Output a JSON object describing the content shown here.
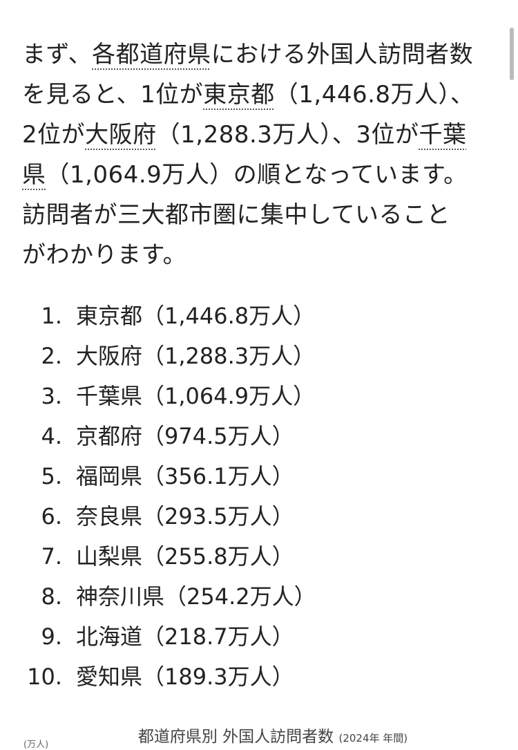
{
  "paragraph": {
    "lines": [
      [
        {
          "t": "まず、"
        },
        {
          "t": "各都道府県",
          "link": true
        },
        {
          "t": "における外国人訪問者数"
        }
      ],
      [
        {
          "t": "を見ると、1位が"
        },
        {
          "t": "東京都",
          "link": true
        },
        {
          "t": "（1,446.8万人）、"
        }
      ],
      [
        {
          "t": "2位が"
        },
        {
          "t": "大阪府",
          "link": true
        },
        {
          "t": "（1,288.3万人）、3位が"
        },
        {
          "t": "千葉",
          "link": true
        }
      ],
      [
        {
          "t": "県",
          "link": true
        },
        {
          "t": "（1,064.9万人）の順となっています。"
        }
      ],
      [
        {
          "t": "訪問者が三大都市圏に集中していること"
        }
      ],
      [
        {
          "t": "がわかります。"
        }
      ]
    ]
  },
  "ranking": [
    {
      "num": "1.",
      "text": "東京都（1,446.8万人）"
    },
    {
      "num": "2.",
      "text": "大阪府（1,288.3万人）"
    },
    {
      "num": "3.",
      "text": "千葉県（1,064.9万人）"
    },
    {
      "num": "4.",
      "text": "京都府（974.5万人）"
    },
    {
      "num": "5.",
      "text": "福岡県（356.1万人）"
    },
    {
      "num": "6.",
      "text": "奈良県（293.5万人）"
    },
    {
      "num": "7.",
      "text": "山梨県（255.8万人）"
    },
    {
      "num": "8.",
      "text": "神奈川県（254.2万人）"
    },
    {
      "num": "9.",
      "text": "北海道（218.7万人）"
    },
    {
      "num": "10.",
      "text": "愛知県（189.3万人）"
    }
  ],
  "figure": {
    "title": "都道府県別 外国人訪問者数",
    "subtitle": "(2024年 年間)",
    "unit": "(万人)"
  }
}
